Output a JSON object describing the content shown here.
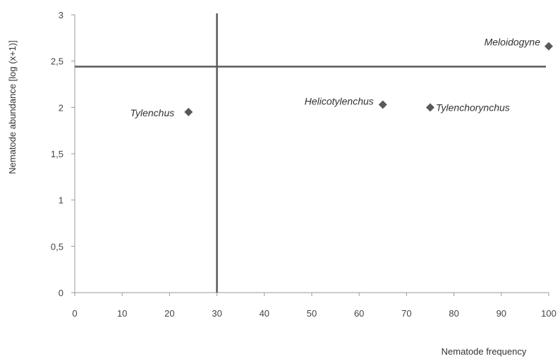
{
  "chart_data": {
    "type": "scatter",
    "xlabel": "Nematode frequency",
    "ylabel": "Nematode abundance [log (x+1)]",
    "xlim": [
      0,
      100
    ],
    "ylim": [
      0,
      3
    ],
    "x_ticks": [
      "0",
      "10",
      "20",
      "30",
      "40",
      "50",
      "60",
      "70",
      "80",
      "90",
      "100"
    ],
    "y_ticks": [
      "0",
      "0,5",
      "1",
      "1,5",
      "2",
      "2,5",
      "3"
    ],
    "grid": false,
    "legend": "none",
    "marker": "diamond",
    "marker_color": "#595959",
    "reference_lines": {
      "vertical_x": 30,
      "horizontal_y": 2.44,
      "color": "#595959"
    },
    "points": [
      {
        "label": "Meloidogyne",
        "x": 100,
        "y": 2.66
      },
      {
        "label": "Helicotylenchus",
        "x": 65,
        "y": 2.03
      },
      {
        "label": "Tylenchorynchus",
        "x": 75,
        "y": 2.0
      },
      {
        "label": "Tylenchus",
        "x": 24,
        "y": 1.95
      }
    ]
  }
}
